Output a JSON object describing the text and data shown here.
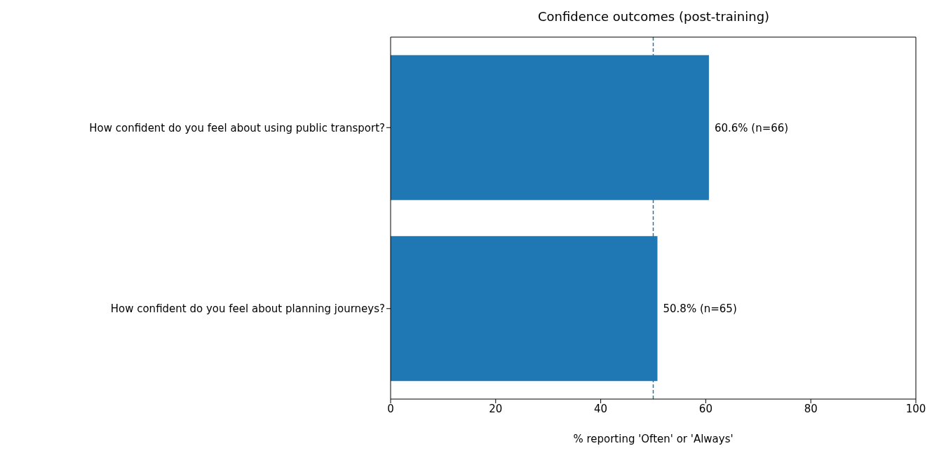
{
  "chart_data": {
    "type": "bar",
    "orientation": "horizontal",
    "title": "Confidence outcomes (post-training)",
    "xlabel": "% reporting 'Often' or 'Always'",
    "categories": [
      "How confident do you feel about using public transport?",
      "How confident do you feel about planning journeys?"
    ],
    "values": [
      60.6,
      50.8
    ],
    "color": "#1f77b4",
    "value_labels": [
      "60.6% (n=66)",
      "50.8% (n=65)"
    ],
    "xlim": [
      0,
      100
    ],
    "xticks": [
      0,
      20,
      40,
      60,
      80,
      100
    ],
    "ref_lines": [
      {
        "axis": "x",
        "value": 50,
        "color": "#1f77b4",
        "line_style": "dashed"
      }
    ]
  }
}
